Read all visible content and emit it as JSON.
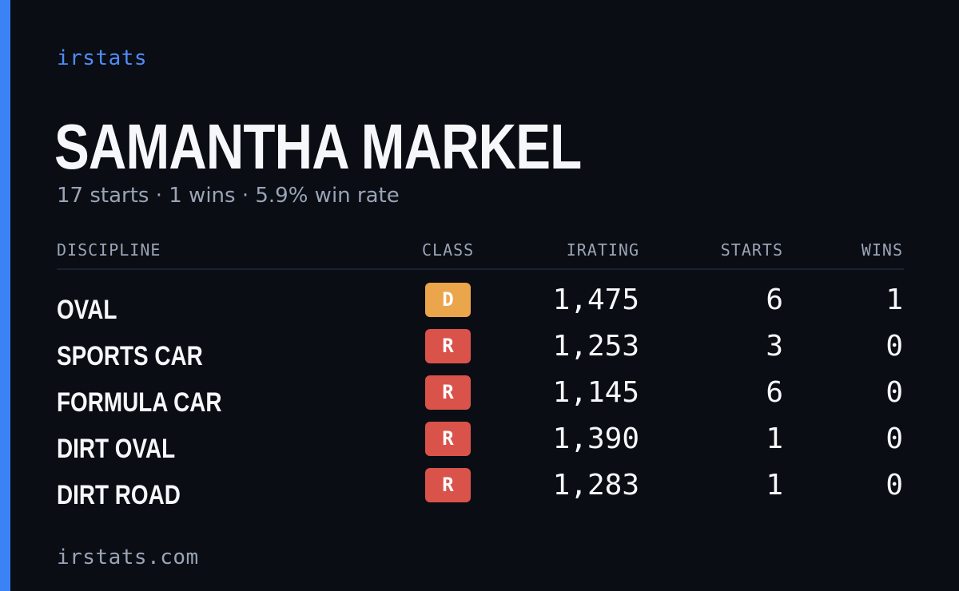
{
  "brand": "irstats",
  "driver": {
    "name": "SAMANTHA MARKEL",
    "summary": "17 starts · 1 wins · 5.9% win rate"
  },
  "table": {
    "headers": {
      "discipline": "DISCIPLINE",
      "class": "CLASS",
      "irating": "IRATING",
      "starts": "STARTS",
      "wins": "WINS"
    },
    "rows": [
      {
        "discipline": "OVAL",
        "class": "D",
        "class_color": "#eba54a",
        "irating": "1,475",
        "starts": "6",
        "wins": "1"
      },
      {
        "discipline": "SPORTS CAR",
        "class": "R",
        "class_color": "#d9534a",
        "irating": "1,253",
        "starts": "3",
        "wins": "0"
      },
      {
        "discipline": "FORMULA CAR",
        "class": "R",
        "class_color": "#d9534a",
        "irating": "1,145",
        "starts": "6",
        "wins": "0"
      },
      {
        "discipline": "DIRT OVAL",
        "class": "R",
        "class_color": "#d9534a",
        "irating": "1,390",
        "starts": "1",
        "wins": "0"
      },
      {
        "discipline": "DIRT ROAD",
        "class": "R",
        "class_color": "#d9534a",
        "irating": "1,283",
        "starts": "1",
        "wins": "0"
      }
    ]
  },
  "footer": "irstats.com",
  "colors": {
    "accent": "#3b82f6",
    "background": "#0a0d14",
    "text_primary": "#f5f7fa",
    "text_muted": "#9aa4b5"
  }
}
